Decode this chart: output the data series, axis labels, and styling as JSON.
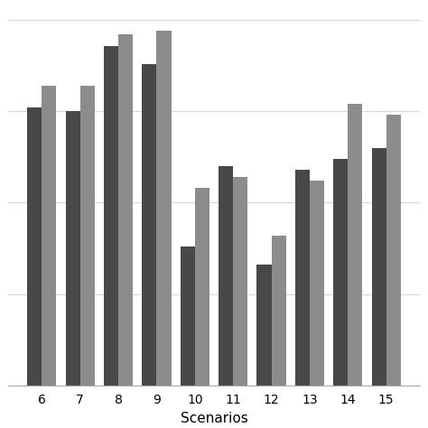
{
  "scenarios": [
    6,
    7,
    8,
    9,
    10,
    11,
    12,
    13,
    14,
    15
  ],
  "series1": [
    0.76,
    0.75,
    0.93,
    0.88,
    0.38,
    0.6,
    0.33,
    0.59,
    0.62,
    0.65
  ],
  "series2": [
    0.82,
    0.82,
    0.96,
    0.97,
    0.54,
    0.57,
    0.41,
    0.56,
    0.77,
    0.74
  ],
  "color1": "#484848",
  "color2": "#8c8c8c",
  "xlabel": "Scenarios",
  "bar_width": 0.38,
  "ylim": [
    0,
    1.02
  ],
  "grid_color": "#d8d8d8",
  "background_color": "#ffffff",
  "xlabel_fontsize": 11,
  "tick_fontsize": 10
}
